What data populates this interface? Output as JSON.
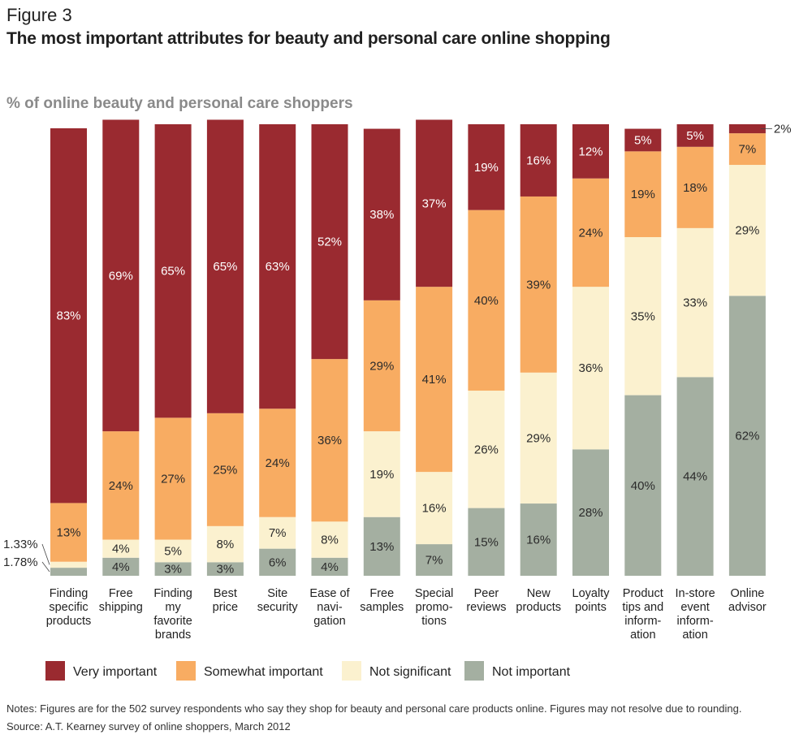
{
  "figure_label": "Figure 3",
  "title": "The most important attributes for beauty and personal care online shopping",
  "subtitle": "% of online beauty and personal care shoppers",
  "notes": "Notes: Figures are for the 502 survey respondents who say they shop for beauty and personal care products online. Figures may not resolve due to rounding.",
  "source": "Source: A.T. Kearney survey of online shoppers, March 2012",
  "colors": {
    "very_important": "#9a2a30",
    "somewhat_important": "#f8ac62",
    "not_significant": "#fbf1cf",
    "not_important": "#a4afa1",
    "label_text": "#2b2b2b"
  },
  "chart_data": {
    "type": "bar",
    "stacked": true,
    "ylim": [
      0,
      100
    ],
    "grid": false,
    "legend_position": "bottom",
    "categories": [
      [
        "Finding",
        "specific",
        "products"
      ],
      [
        "Free",
        "shipping"
      ],
      [
        "Finding",
        "my",
        "favorite",
        "brands"
      ],
      [
        "Best",
        "price"
      ],
      [
        "Site",
        "security"
      ],
      [
        "Ease of",
        "navi-",
        "gation"
      ],
      [
        "Free",
        "samples"
      ],
      [
        "Special",
        "promo-",
        "tions"
      ],
      [
        "Peer",
        "reviews"
      ],
      [
        "New",
        "products"
      ],
      [
        "Loyalty",
        "points"
      ],
      [
        "Product",
        "tips and",
        "inform-",
        "ation"
      ],
      [
        "In-store",
        "event",
        "inform-",
        "ation"
      ],
      [
        "Online",
        "advisor"
      ]
    ],
    "series": [
      {
        "name": "Not important",
        "color_key": "not_important",
        "values": [
          1.78,
          4,
          3,
          3,
          6,
          4,
          13,
          7,
          15,
          16,
          28,
          40,
          44,
          62
        ],
        "labels": [
          "1.78%",
          "4%",
          "3%",
          "3%",
          "6%",
          "4%",
          "13%",
          "7%",
          "15%",
          "16%",
          "28%",
          "40%",
          "44%",
          "62%"
        ]
      },
      {
        "name": "Not significant",
        "color_key": "not_significant",
        "values": [
          1.33,
          4,
          5,
          8,
          7,
          8,
          19,
          16,
          26,
          29,
          36,
          35,
          33,
          29
        ],
        "labels": [
          "1.33%",
          "4%",
          "5%",
          "8%",
          "7%",
          "8%",
          "19%",
          "16%",
          "26%",
          "29%",
          "36%",
          "35%",
          "33%",
          "29%"
        ]
      },
      {
        "name": "Somewhat important",
        "color_key": "somewhat_important",
        "values": [
          13,
          24,
          27,
          25,
          24,
          36,
          29,
          41,
          40,
          39,
          24,
          19,
          18,
          7
        ],
        "labels": [
          "13%",
          "24%",
          "27%",
          "25%",
          "24%",
          "36%",
          "29%",
          "41%",
          "40%",
          "39%",
          "24%",
          "19%",
          "18%",
          "7%"
        ]
      },
      {
        "name": "Very important",
        "color_key": "very_important",
        "values": [
          83,
          69,
          65,
          65,
          63,
          52,
          38,
          37,
          19,
          16,
          12,
          5,
          5,
          2
        ],
        "labels": [
          "83%",
          "69%",
          "65%",
          "65%",
          "63%",
          "52%",
          "38%",
          "37%",
          "19%",
          "16%",
          "12%",
          "5%",
          "5%",
          "2%"
        ]
      }
    ],
    "legend": [
      {
        "name": "Very important",
        "color_key": "very_important"
      },
      {
        "name": "Somewhat important",
        "color_key": "somewhat_important"
      },
      {
        "name": "Not significant",
        "color_key": "not_significant"
      },
      {
        "name": "Not important",
        "color_key": "not_important"
      }
    ]
  }
}
